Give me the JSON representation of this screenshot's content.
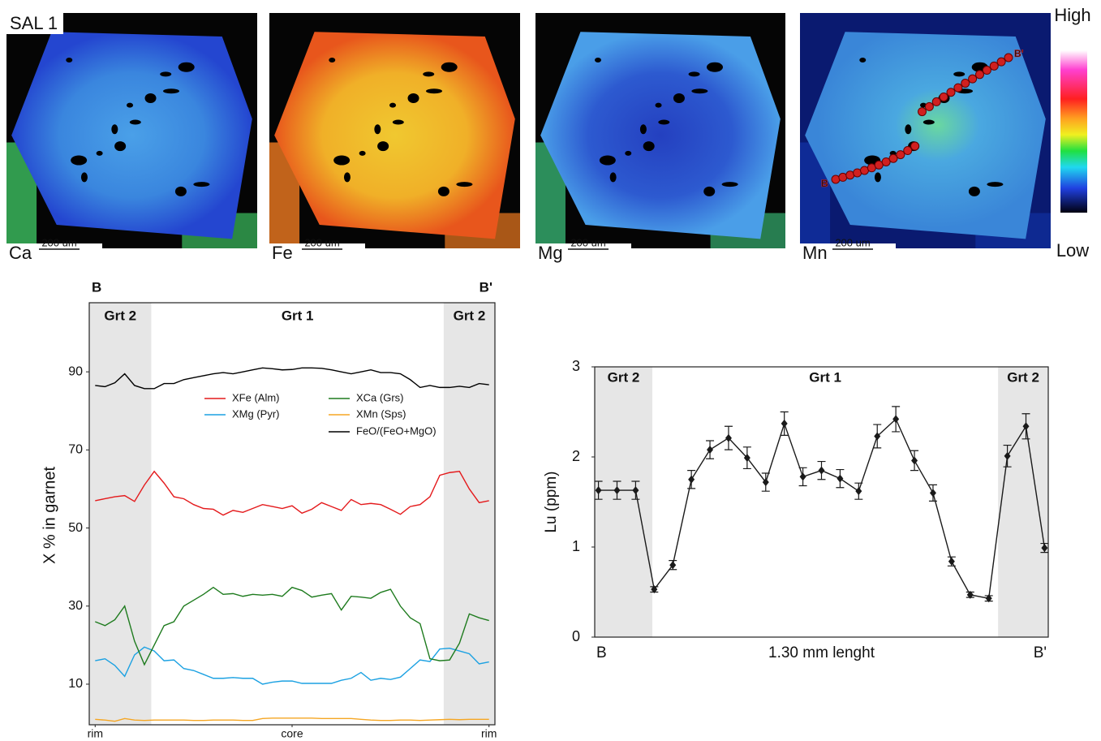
{
  "maps": {
    "sample": "SAL 1",
    "panels": [
      {
        "element": "Ca",
        "scale": "200 um"
      },
      {
        "element": "Fe",
        "scale": "200 um"
      },
      {
        "element": "Mg",
        "scale": "200 um"
      },
      {
        "element": "Mn",
        "scale": "200 um"
      }
    ],
    "profile_start": "B",
    "profile_end": "B'",
    "colorbar": {
      "high": "High",
      "low": "Low"
    }
  },
  "chart_data": [
    {
      "type": "line",
      "end_labels": [
        "B",
        "B'"
      ],
      "ylabel": "X % in garnet",
      "xlim": [
        -0.6,
        40.6
      ],
      "xticks": [
        {
          "value": 0,
          "label": "rim"
        },
        {
          "value": 20,
          "label": "core"
        },
        {
          "value": 40,
          "label": "rim"
        }
      ],
      "ylim": [
        -0.4,
        107.7
      ],
      "yticks": [
        10,
        30,
        50,
        70,
        90
      ],
      "zones": [
        {
          "label": "Grt 2",
          "from": -0.6,
          "to": 5.7,
          "shaded": true
        },
        {
          "label": "Grt 1",
          "from": 5.7,
          "to": 35.4,
          "shaded": false
        },
        {
          "label": "Grt 2",
          "from": 35.4,
          "to": 40.6,
          "shaded": true
        }
      ],
      "x": [
        0,
        1,
        2,
        3,
        4,
        5,
        6,
        7,
        8,
        9,
        10,
        11,
        12,
        13,
        14,
        15,
        16,
        17,
        18,
        19,
        20,
        21,
        22,
        23,
        24,
        25,
        26,
        27,
        28,
        29,
        30,
        31,
        32,
        33,
        34,
        35,
        36,
        37,
        38,
        39,
        40
      ],
      "series": [
        {
          "name": "XFe (Alm)",
          "color": "#e41a1c",
          "values": [
            57,
            57.5,
            58,
            58.3,
            56.8,
            61,
            64.5,
            61.5,
            58,
            57.5,
            56,
            55,
            54.8,
            53.3,
            54.5,
            54,
            55,
            56,
            55.5,
            55,
            55.7,
            53.8,
            54.8,
            56.5,
            55.5,
            54.5,
            57.3,
            56,
            56.3,
            56,
            54.8,
            53.5,
            55.5,
            56,
            58,
            63.5,
            64.2,
            64.5,
            60,
            56.5,
            57
          ]
        },
        {
          "name": "XMg (Pyr)",
          "color": "#1ba1e2",
          "values": [
            16,
            16.5,
            14.8,
            12,
            17.5,
            19.5,
            18.5,
            16,
            16.2,
            14,
            13.5,
            12.5,
            11.5,
            11.5,
            11.7,
            11.5,
            11.5,
            10,
            10.5,
            10.8,
            10.8,
            10.2,
            10.2,
            10.2,
            10.2,
            11,
            11.5,
            13,
            11,
            11.5,
            11.2,
            11.8,
            14,
            16.2,
            15.8,
            19,
            19.2,
            18.5,
            17.8,
            15.2,
            15.7
          ]
        },
        {
          "name": "XCa (Grs)",
          "color": "#1e7b1e",
          "values": [
            26,
            25,
            26.5,
            30,
            21,
            15,
            20,
            25,
            26,
            30,
            31.5,
            33,
            34.8,
            33,
            33.2,
            32.5,
            33,
            32.8,
            33,
            32.5,
            34.8,
            34,
            32.3,
            32.8,
            33.2,
            29,
            32.5,
            32.3,
            32,
            33.5,
            34.3,
            30,
            27,
            25.5,
            16.5,
            16,
            16.2,
            20.5,
            28,
            27,
            26.3
          ]
        },
        {
          "name": "XMn (Sps)",
          "color": "#f5a623",
          "values": [
            1,
            0.8,
            0.5,
            1.2,
            0.8,
            0.7,
            0.8,
            0.8,
            0.8,
            0.8,
            0.7,
            0.7,
            0.8,
            0.8,
            0.8,
            0.7,
            0.7,
            1.2,
            1.3,
            1.3,
            1.3,
            1.3,
            1.3,
            1.2,
            1.2,
            1.2,
            1.2,
            1,
            0.8,
            0.7,
            0.7,
            0.8,
            0.8,
            0.7,
            0.8,
            0.9,
            1,
            0.9,
            1,
            1,
            1
          ]
        },
        {
          "name": "FeO/(FeO+MgO)",
          "color": "#000000",
          "values": [
            86.5,
            86.2,
            87.2,
            89.5,
            86.5,
            85.7,
            85.7,
            87,
            87,
            88,
            88.5,
            89,
            89.5,
            89.8,
            89.5,
            90,
            90.5,
            91,
            90.8,
            90.5,
            90.6,
            91,
            91,
            90.9,
            90.5,
            90,
            89.5,
            90,
            90.5,
            89.8,
            89.8,
            89.5,
            88,
            86,
            86.5,
            86,
            86,
            86.3,
            86,
            87,
            86.7
          ]
        }
      ]
    },
    {
      "type": "line",
      "markers": "diamond",
      "ylabel": "Lu (ppm)",
      "xlabel": "1.30 mm lenght",
      "end_labels": [
        "B",
        "B'"
      ],
      "xlim": [
        -0.2,
        24.2
      ],
      "ylim": [
        0,
        3
      ],
      "yticks": [
        0,
        1,
        2,
        3
      ],
      "color": "#1a1a1a",
      "zones": [
        {
          "label": "Grt 2",
          "from": -0.2,
          "to": 2.9,
          "shaded": true
        },
        {
          "label": "Grt 1",
          "from": 2.9,
          "to": 21.5,
          "shaded": false
        },
        {
          "label": "Grt 2",
          "from": 21.5,
          "to": 24.2,
          "shaded": true
        }
      ],
      "x": [
        0,
        1,
        2,
        3,
        4,
        5,
        6,
        7,
        8,
        9,
        10,
        11,
        12,
        13,
        14,
        15,
        16,
        17,
        18,
        19,
        20,
        21,
        22,
        23,
        24
      ],
      "values": [
        1.63,
        1.63,
        1.63,
        0.53,
        0.8,
        1.75,
        2.08,
        2.21,
        1.99,
        1.72,
        2.37,
        1.78,
        1.85,
        1.76,
        1.62,
        2.23,
        2.42,
        1.96,
        1.6,
        0.84,
        0.47,
        0.43,
        2.01,
        2.34,
        0.99
      ],
      "errors": [
        0.1,
        0.1,
        0.1,
        0.03,
        0.05,
        0.1,
        0.1,
        0.13,
        0.12,
        0.1,
        0.13,
        0.1,
        0.1,
        0.1,
        0.09,
        0.13,
        0.14,
        0.11,
        0.09,
        0.05,
        0.03,
        0.03,
        0.12,
        0.14,
        0.05
      ]
    }
  ]
}
